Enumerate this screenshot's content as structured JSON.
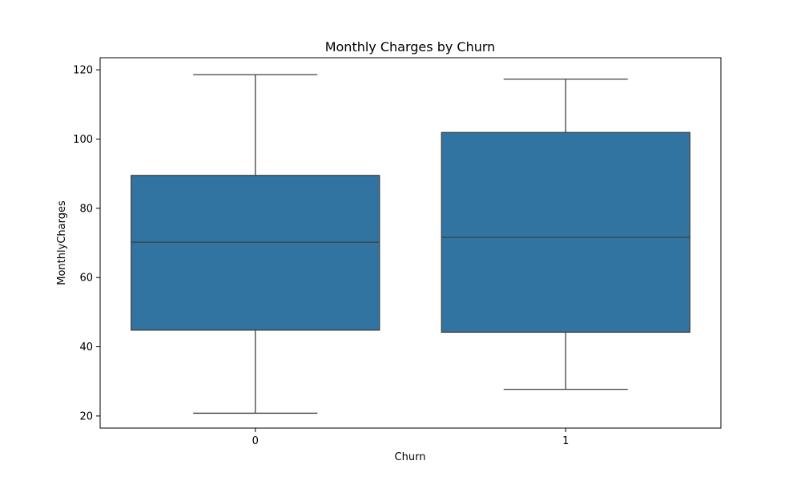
{
  "chart_data": {
    "type": "box",
    "title": "Monthly Charges by Churn",
    "xlabel": "Churn",
    "ylabel": "MonthlyCharges",
    "categories": [
      "0",
      "1"
    ],
    "ylim": [
      16.5,
      123.5
    ],
    "yticks": [
      20,
      40,
      60,
      80,
      100,
      120
    ],
    "grid": false,
    "box_color": "#3274a1",
    "line_color": "#3f3f3f",
    "boxes": [
      {
        "category": "0",
        "whisker_low": 20.8,
        "q1": 44.8,
        "median": 70.2,
        "q3": 89.5,
        "whisker_high": 118.6
      },
      {
        "category": "1",
        "whisker_low": 27.7,
        "q1": 44.2,
        "median": 71.6,
        "q3": 101.9,
        "whisker_high": 117.3
      }
    ]
  }
}
